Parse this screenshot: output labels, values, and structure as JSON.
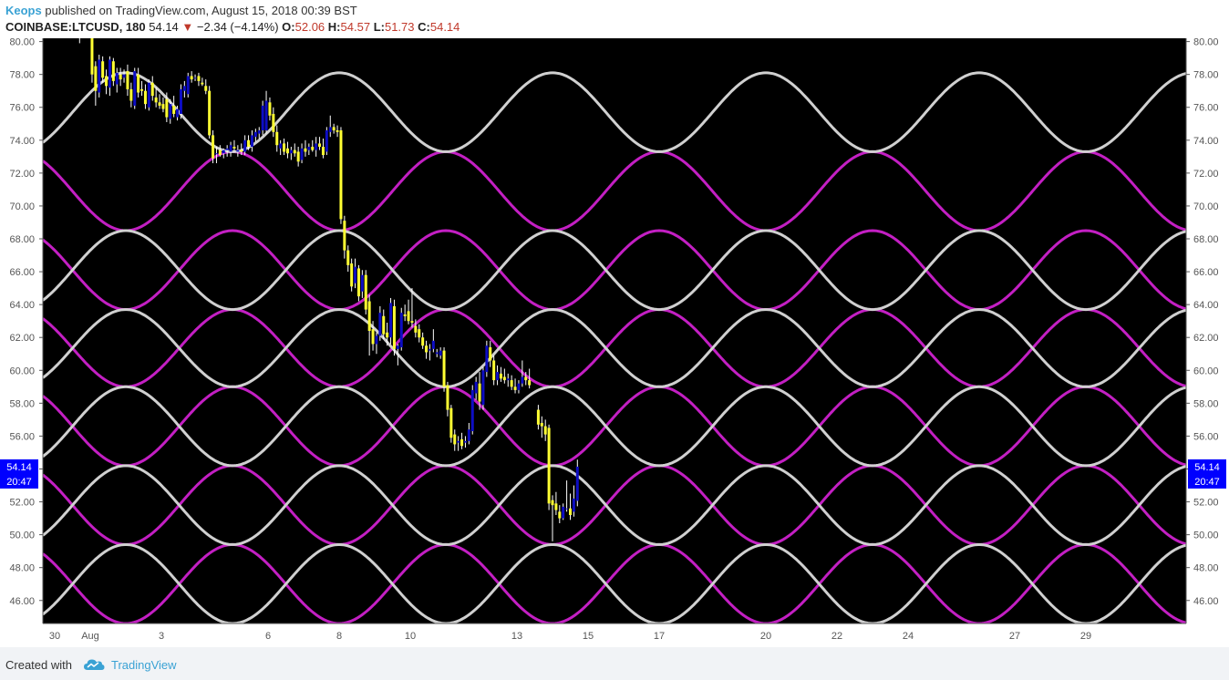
{
  "header": {
    "author": "Keops",
    "published_text": " published on TradingView.com, August 15, 2018 00:39 BST",
    "symbol": "COINBASE:LTCUSD, 180",
    "last": "54.14",
    "down_arrow": "▼",
    "change": "−2.34 (−4.14%)",
    "o_label": "O:",
    "o_value": "52.06",
    "h_label": "H:",
    "h_value": "54.57",
    "l_label": "L:",
    "l_value": "51.73",
    "c_label": "C:",
    "c_value": "54.14"
  },
  "footer": {
    "created_with": "Created with",
    "brand": "TradingView"
  },
  "colors": {
    "background": "#000000",
    "white_wave": "#d0d0d0",
    "magenta_wave": "#c31fc3",
    "candle_down": "#ffff33",
    "candle_up": "#0d0dc4",
    "price_tag": "#0000ff"
  },
  "chart_data": {
    "type": "candlestick",
    "ylim": [
      44.6,
      80.2
    ],
    "y_ticks": [
      "80.00",
      "78.00",
      "76.00",
      "74.00",
      "72.00",
      "70.00",
      "68.00",
      "66.00",
      "64.00",
      "62.00",
      "60.00",
      "58.00",
      "56.00",
      "54.00",
      "52.00",
      "50.00",
      "48.00",
      "46.00"
    ],
    "x_ticks": [
      {
        "label": "30",
        "t": 0
      },
      {
        "label": "Aug",
        "t": 1
      },
      {
        "label": "3",
        "t": 3
      },
      {
        "label": "6",
        "t": 6
      },
      {
        "label": "8",
        "t": 8
      },
      {
        "label": "10",
        "t": 10
      },
      {
        "label": "13",
        "t": 13
      },
      {
        "label": "15",
        "t": 15
      },
      {
        "label": "17",
        "t": 17
      },
      {
        "label": "20",
        "t": 20
      },
      {
        "label": "22",
        "t": 22
      },
      {
        "label": "24",
        "t": 24
      },
      {
        "label": "27",
        "t": 27
      },
      {
        "label": "29",
        "t": 29
      }
    ],
    "price_tag": {
      "price": "54.14",
      "time": "20:47",
      "value": 54.14
    },
    "waves": {
      "period_days": 6,
      "white": {
        "crest_day": 8,
        "bands": [
          [
            73.3,
            78.1
          ],
          [
            63.7,
            68.5
          ],
          [
            59.0,
            63.7
          ],
          [
            54.2,
            59.0
          ],
          [
            49.4,
            54.2
          ],
          [
            44.6,
            49.4
          ]
        ]
      },
      "magenta": {
        "crest_day": 5,
        "bands": [
          [
            68.5,
            73.3
          ],
          [
            63.7,
            68.5
          ],
          [
            59.0,
            63.7
          ],
          [
            54.2,
            59.0
          ],
          [
            49.4,
            54.2
          ],
          [
            44.6,
            49.4
          ]
        ]
      }
    },
    "candles": [
      {
        "t": 0.7,
        "o": 80.5,
        "h": 80.5,
        "l": 79.9,
        "c": 80.3
      },
      {
        "t": 1.05,
        "o": 80.3,
        "h": 80.4,
        "l": 77.5,
        "c": 78.0
      },
      {
        "t": 1.15,
        "o": 78.5,
        "h": 78.8,
        "l": 76.1,
        "c": 77.0
      },
      {
        "t": 1.25,
        "o": 76.9,
        "h": 79.2,
        "l": 76.6,
        "c": 78.9
      },
      {
        "t": 1.35,
        "o": 78.8,
        "h": 79.1,
        "l": 77.5,
        "c": 77.8
      },
      {
        "t": 1.45,
        "o": 77.9,
        "h": 78.3,
        "l": 76.8,
        "c": 77.3
      },
      {
        "t": 1.55,
        "o": 77.2,
        "h": 79.1,
        "l": 76.7,
        "c": 78.9
      },
      {
        "t": 1.65,
        "o": 78.8,
        "h": 79.0,
        "l": 77.3,
        "c": 77.6
      },
      {
        "t": 1.75,
        "o": 77.4,
        "h": 78.4,
        "l": 76.9,
        "c": 78.1
      },
      {
        "t": 1.85,
        "o": 78.0,
        "h": 78.4,
        "l": 77.3,
        "c": 77.7
      },
      {
        "t": 1.95,
        "o": 77.8,
        "h": 78.3,
        "l": 77.5,
        "c": 78.0
      },
      {
        "t": 2.05,
        "o": 78.2,
        "h": 78.6,
        "l": 76.7,
        "c": 77.1
      },
      {
        "t": 2.15,
        "o": 77.1,
        "h": 77.5,
        "l": 76.0,
        "c": 76.4
      },
      {
        "t": 2.25,
        "o": 76.1,
        "h": 78.4,
        "l": 75.9,
        "c": 78.2
      },
      {
        "t": 2.35,
        "o": 78.0,
        "h": 78.4,
        "l": 76.6,
        "c": 76.9
      },
      {
        "t": 2.45,
        "o": 77.1,
        "h": 77.6,
        "l": 76.7,
        "c": 77.0
      },
      {
        "t": 2.55,
        "o": 77.0,
        "h": 77.4,
        "l": 75.9,
        "c": 76.2
      },
      {
        "t": 2.65,
        "o": 76.0,
        "h": 77.7,
        "l": 75.8,
        "c": 77.5
      },
      {
        "t": 2.75,
        "o": 77.5,
        "h": 77.9,
        "l": 76.4,
        "c": 76.7
      },
      {
        "t": 2.85,
        "o": 76.6,
        "h": 77.2,
        "l": 76.0,
        "c": 76.3
      },
      {
        "t": 2.95,
        "o": 76.3,
        "h": 76.8,
        "l": 75.9,
        "c": 76.1
      },
      {
        "t": 3.05,
        "o": 76.2,
        "h": 76.6,
        "l": 75.7,
        "c": 75.9
      },
      {
        "t": 3.15,
        "o": 76.5,
        "h": 76.9,
        "l": 75.1,
        "c": 75.4
      },
      {
        "t": 3.25,
        "o": 75.3,
        "h": 76.5,
        "l": 75.0,
        "c": 76.2
      },
      {
        "t": 3.35,
        "o": 76.1,
        "h": 76.7,
        "l": 75.4,
        "c": 75.6
      },
      {
        "t": 3.45,
        "o": 75.4,
        "h": 76.1,
        "l": 75.2,
        "c": 75.9
      },
      {
        "t": 3.55,
        "o": 75.6,
        "h": 77.4,
        "l": 75.3,
        "c": 77.1
      },
      {
        "t": 3.65,
        "o": 77.0,
        "h": 77.6,
        "l": 76.6,
        "c": 77.3
      },
      {
        "t": 3.75,
        "o": 76.8,
        "h": 78.1,
        "l": 76.6,
        "c": 77.9
      },
      {
        "t": 3.85,
        "o": 77.9,
        "h": 78.2,
        "l": 77.5,
        "c": 77.7
      },
      {
        "t": 3.95,
        "o": 77.8,
        "h": 78.0,
        "l": 77.6,
        "c": 77.8
      },
      {
        "t": 4.05,
        "o": 77.9,
        "h": 78.1,
        "l": 77.3,
        "c": 77.6
      },
      {
        "t": 4.15,
        "o": 77.5,
        "h": 77.8,
        "l": 77.3,
        "c": 77.4
      },
      {
        "t": 4.25,
        "o": 77.3,
        "h": 77.7,
        "l": 76.8,
        "c": 77.0
      },
      {
        "t": 4.35,
        "o": 77.0,
        "h": 77.3,
        "l": 74.1,
        "c": 74.3
      },
      {
        "t": 4.45,
        "o": 74.3,
        "h": 74.6,
        "l": 72.6,
        "c": 72.9
      },
      {
        "t": 4.55,
        "o": 73.2,
        "h": 73.6,
        "l": 72.6,
        "c": 73.2
      },
      {
        "t": 4.65,
        "o": 73.4,
        "h": 73.7,
        "l": 73.0,
        "c": 73.1
      },
      {
        "t": 4.75,
        "o": 73.2,
        "h": 73.5,
        "l": 72.9,
        "c": 73.4
      },
      {
        "t": 4.85,
        "o": 73.4,
        "h": 73.7,
        "l": 73.0,
        "c": 73.5
      },
      {
        "t": 4.95,
        "o": 73.3,
        "h": 73.9,
        "l": 73.0,
        "c": 73.7
      },
      {
        "t": 5.05,
        "o": 73.6,
        "h": 74.0,
        "l": 73.3,
        "c": 73.5
      },
      {
        "t": 5.15,
        "o": 73.3,
        "h": 73.7,
        "l": 73.0,
        "c": 73.4
      },
      {
        "t": 5.25,
        "o": 73.4,
        "h": 73.8,
        "l": 73.1,
        "c": 73.3
      },
      {
        "t": 5.35,
        "o": 73.3,
        "h": 74.3,
        "l": 73.1,
        "c": 74.0
      },
      {
        "t": 5.45,
        "o": 74.0,
        "h": 74.3,
        "l": 73.4,
        "c": 73.6
      },
      {
        "t": 5.55,
        "o": 73.6,
        "h": 74.6,
        "l": 73.3,
        "c": 74.3
      },
      {
        "t": 5.65,
        "o": 74.2,
        "h": 74.7,
        "l": 73.9,
        "c": 74.5
      },
      {
        "t": 5.75,
        "o": 74.4,
        "h": 74.8,
        "l": 74.1,
        "c": 74.6
      },
      {
        "t": 5.85,
        "o": 74.6,
        "h": 76.4,
        "l": 74.3,
        "c": 76.1
      },
      {
        "t": 5.95,
        "o": 74.6,
        "h": 77.0,
        "l": 74.4,
        "c": 76.4
      },
      {
        "t": 6.05,
        "o": 76.3,
        "h": 76.6,
        "l": 75.2,
        "c": 75.5
      },
      {
        "t": 6.15,
        "o": 75.6,
        "h": 76.0,
        "l": 74.2,
        "c": 74.5
      },
      {
        "t": 6.25,
        "o": 74.5,
        "h": 74.9,
        "l": 73.3,
        "c": 73.7
      },
      {
        "t": 6.35,
        "o": 73.5,
        "h": 74.0,
        "l": 73.1,
        "c": 73.8
      },
      {
        "t": 6.45,
        "o": 73.8,
        "h": 74.1,
        "l": 73.1,
        "c": 73.3
      },
      {
        "t": 6.55,
        "o": 73.5,
        "h": 73.9,
        "l": 72.9,
        "c": 73.2
      },
      {
        "t": 6.65,
        "o": 73.2,
        "h": 73.6,
        "l": 72.8,
        "c": 73.4
      },
      {
        "t": 6.75,
        "o": 73.4,
        "h": 73.8,
        "l": 73.0,
        "c": 73.2
      },
      {
        "t": 6.85,
        "o": 73.3,
        "h": 73.6,
        "l": 72.4,
        "c": 72.7
      },
      {
        "t": 6.95,
        "o": 72.8,
        "h": 73.8,
        "l": 72.6,
        "c": 73.5
      },
      {
        "t": 7.05,
        "o": 73.5,
        "h": 74.0,
        "l": 73.0,
        "c": 73.3
      },
      {
        "t": 7.15,
        "o": 73.4,
        "h": 73.8,
        "l": 73.1,
        "c": 73.6
      },
      {
        "t": 7.25,
        "o": 73.6,
        "h": 74.0,
        "l": 73.3,
        "c": 73.4
      },
      {
        "t": 7.35,
        "o": 73.4,
        "h": 74.2,
        "l": 73.0,
        "c": 73.8
      },
      {
        "t": 7.45,
        "o": 73.8,
        "h": 74.2,
        "l": 73.4,
        "c": 73.6
      },
      {
        "t": 7.55,
        "o": 73.6,
        "h": 74.1,
        "l": 72.9,
        "c": 73.1
      },
      {
        "t": 7.65,
        "o": 73.3,
        "h": 74.8,
        "l": 73.1,
        "c": 74.6
      },
      {
        "t": 7.75,
        "o": 74.5,
        "h": 75.5,
        "l": 74.2,
        "c": 74.8
      },
      {
        "t": 7.85,
        "o": 74.8,
        "h": 75.0,
        "l": 74.4,
        "c": 74.6
      },
      {
        "t": 7.95,
        "o": 74.6,
        "h": 74.9,
        "l": 74.2,
        "c": 74.5
      },
      {
        "t": 8.05,
        "o": 74.6,
        "h": 74.8,
        "l": 68.9,
        "c": 69.2
      },
      {
        "t": 8.15,
        "o": 69.1,
        "h": 69.4,
        "l": 66.8,
        "c": 67.3
      },
      {
        "t": 8.25,
        "o": 67.3,
        "h": 67.6,
        "l": 66.0,
        "c": 66.4
      },
      {
        "t": 8.35,
        "o": 66.5,
        "h": 66.8,
        "l": 64.8,
        "c": 65.1
      },
      {
        "t": 8.45,
        "o": 65.3,
        "h": 66.8,
        "l": 65.0,
        "c": 66.3
      },
      {
        "t": 8.55,
        "o": 66.2,
        "h": 66.4,
        "l": 64.2,
        "c": 64.5
      },
      {
        "t": 8.65,
        "o": 64.8,
        "h": 66.1,
        "l": 64.4,
        "c": 65.8
      },
      {
        "t": 8.75,
        "o": 65.8,
        "h": 66.1,
        "l": 63.4,
        "c": 63.7
      },
      {
        "t": 8.85,
        "o": 64.2,
        "h": 64.6,
        "l": 60.9,
        "c": 62.4
      },
      {
        "t": 8.95,
        "o": 62.5,
        "h": 63.0,
        "l": 61.2,
        "c": 61.6
      },
      {
        "t": 9.05,
        "o": 61.6,
        "h": 62.3,
        "l": 61.0,
        "c": 62.1
      },
      {
        "t": 9.15,
        "o": 62.1,
        "h": 63.9,
        "l": 61.8,
        "c": 63.5
      },
      {
        "t": 9.25,
        "o": 63.3,
        "h": 63.7,
        "l": 61.9,
        "c": 62.2
      },
      {
        "t": 9.35,
        "o": 62.3,
        "h": 62.9,
        "l": 61.5,
        "c": 62.0
      },
      {
        "t": 9.45,
        "o": 62.0,
        "h": 64.4,
        "l": 61.6,
        "c": 64.1
      },
      {
        "t": 9.55,
        "o": 63.9,
        "h": 64.3,
        "l": 60.9,
        "c": 61.3
      },
      {
        "t": 9.65,
        "o": 61.3,
        "h": 61.6,
        "l": 60.3,
        "c": 61.5
      },
      {
        "t": 9.75,
        "o": 61.4,
        "h": 63.8,
        "l": 61.2,
        "c": 63.5
      },
      {
        "t": 9.85,
        "o": 63.4,
        "h": 64.0,
        "l": 63.0,
        "c": 63.3
      },
      {
        "t": 9.95,
        "o": 63.6,
        "h": 64.3,
        "l": 62.8,
        "c": 63.0
      },
      {
        "t": 10.05,
        "o": 63.0,
        "h": 65.0,
        "l": 62.6,
        "c": 62.9
      },
      {
        "t": 10.15,
        "o": 62.7,
        "h": 63.1,
        "l": 62.0,
        "c": 62.3
      },
      {
        "t": 10.25,
        "o": 62.5,
        "h": 62.8,
        "l": 61.7,
        "c": 62.0
      },
      {
        "t": 10.35,
        "o": 62.0,
        "h": 62.3,
        "l": 61.3,
        "c": 61.5
      },
      {
        "t": 10.45,
        "o": 61.5,
        "h": 61.8,
        "l": 60.7,
        "c": 61.1
      },
      {
        "t": 10.55,
        "o": 61.2,
        "h": 61.6,
        "l": 60.6,
        "c": 61.3
      },
      {
        "t": 10.65,
        "o": 61.3,
        "h": 62.5,
        "l": 61.1,
        "c": 61.8
      },
      {
        "t": 10.75,
        "o": 61.0,
        "h": 61.3,
        "l": 60.8,
        "c": 61.1
      },
      {
        "t": 10.85,
        "o": 60.9,
        "h": 61.4,
        "l": 60.7,
        "c": 61.2
      },
      {
        "t": 10.95,
        "o": 61.2,
        "h": 61.4,
        "l": 58.7,
        "c": 59.0
      },
      {
        "t": 11.05,
        "o": 59.1,
        "h": 59.3,
        "l": 57.2,
        "c": 57.6
      },
      {
        "t": 11.15,
        "o": 57.7,
        "h": 57.9,
        "l": 55.6,
        "c": 55.9
      },
      {
        "t": 11.25,
        "o": 56.1,
        "h": 56.4,
        "l": 55.1,
        "c": 55.5
      },
      {
        "t": 11.35,
        "o": 55.6,
        "h": 56.0,
        "l": 55.1,
        "c": 55.7
      },
      {
        "t": 11.45,
        "o": 55.8,
        "h": 56.2,
        "l": 55.2,
        "c": 55.4
      },
      {
        "t": 11.55,
        "o": 55.6,
        "h": 56.0,
        "l": 55.3,
        "c": 55.7
      },
      {
        "t": 11.65,
        "o": 55.7,
        "h": 56.8,
        "l": 55.5,
        "c": 56.4
      },
      {
        "t": 11.75,
        "o": 56.3,
        "h": 59.1,
        "l": 56.1,
        "c": 58.8
      },
      {
        "t": 11.85,
        "o": 58.6,
        "h": 59.6,
        "l": 58.2,
        "c": 59.3
      },
      {
        "t": 11.95,
        "o": 59.2,
        "h": 59.9,
        "l": 57.6,
        "c": 58.1
      },
      {
        "t": 12.05,
        "o": 57.9,
        "h": 60.2,
        "l": 57.6,
        "c": 60.0
      },
      {
        "t": 12.15,
        "o": 59.9,
        "h": 61.8,
        "l": 59.6,
        "c": 61.5
      },
      {
        "t": 12.25,
        "o": 61.4,
        "h": 61.8,
        "l": 60.2,
        "c": 60.6
      },
      {
        "t": 12.35,
        "o": 60.6,
        "h": 60.9,
        "l": 59.1,
        "c": 59.4
      },
      {
        "t": 12.45,
        "o": 59.4,
        "h": 60.3,
        "l": 59.1,
        "c": 59.9
      },
      {
        "t": 12.55,
        "o": 59.8,
        "h": 60.2,
        "l": 59.3,
        "c": 59.5
      },
      {
        "t": 12.65,
        "o": 59.6,
        "h": 60.1,
        "l": 59.2,
        "c": 59.4
      },
      {
        "t": 12.75,
        "o": 59.4,
        "h": 59.8,
        "l": 59.0,
        "c": 59.5
      },
      {
        "t": 12.85,
        "o": 59.4,
        "h": 59.7,
        "l": 58.8,
        "c": 59.0
      },
      {
        "t": 12.95,
        "o": 59.0,
        "h": 59.5,
        "l": 58.6,
        "c": 58.8
      },
      {
        "t": 13.05,
        "o": 58.8,
        "h": 59.4,
        "l": 58.6,
        "c": 59.2
      },
      {
        "t": 13.15,
        "o": 59.2,
        "h": 60.6,
        "l": 59.0,
        "c": 59.6
      },
      {
        "t": 13.25,
        "o": 59.6,
        "h": 59.9,
        "l": 59.1,
        "c": 59.4
      },
      {
        "t": 13.35,
        "o": 59.4,
        "h": 60.1,
        "l": 58.9,
        "c": 59.1
      },
      {
        "t": 13.6,
        "o": 57.6,
        "h": 57.9,
        "l": 56.4,
        "c": 56.7
      },
      {
        "t": 13.7,
        "o": 56.8,
        "h": 57.2,
        "l": 55.9,
        "c": 56.6
      },
      {
        "t": 13.8,
        "o": 56.6,
        "h": 57.0,
        "l": 55.7,
        "c": 56.1
      },
      {
        "t": 13.9,
        "o": 56.5,
        "h": 56.7,
        "l": 51.5,
        "c": 51.9
      },
      {
        "t": 14.0,
        "o": 52.1,
        "h": 52.4,
        "l": 49.6,
        "c": 51.8
      },
      {
        "t": 14.1,
        "o": 51.9,
        "h": 52.6,
        "l": 51.2,
        "c": 51.5
      },
      {
        "t": 14.2,
        "o": 51.4,
        "h": 51.8,
        "l": 50.7,
        "c": 51.0
      },
      {
        "t": 14.3,
        "o": 51.0,
        "h": 51.9,
        "l": 50.9,
        "c": 51.7
      },
      {
        "t": 14.4,
        "o": 51.6,
        "h": 53.3,
        "l": 51.4,
        "c": 51.6
      },
      {
        "t": 14.5,
        "o": 51.6,
        "h": 52.5,
        "l": 50.9,
        "c": 51.2
      },
      {
        "t": 14.6,
        "o": 51.4,
        "h": 53.0,
        "l": 51.1,
        "c": 52.2
      },
      {
        "t": 14.7,
        "o": 52.06,
        "h": 54.57,
        "l": 51.73,
        "c": 54.14
      }
    ]
  }
}
